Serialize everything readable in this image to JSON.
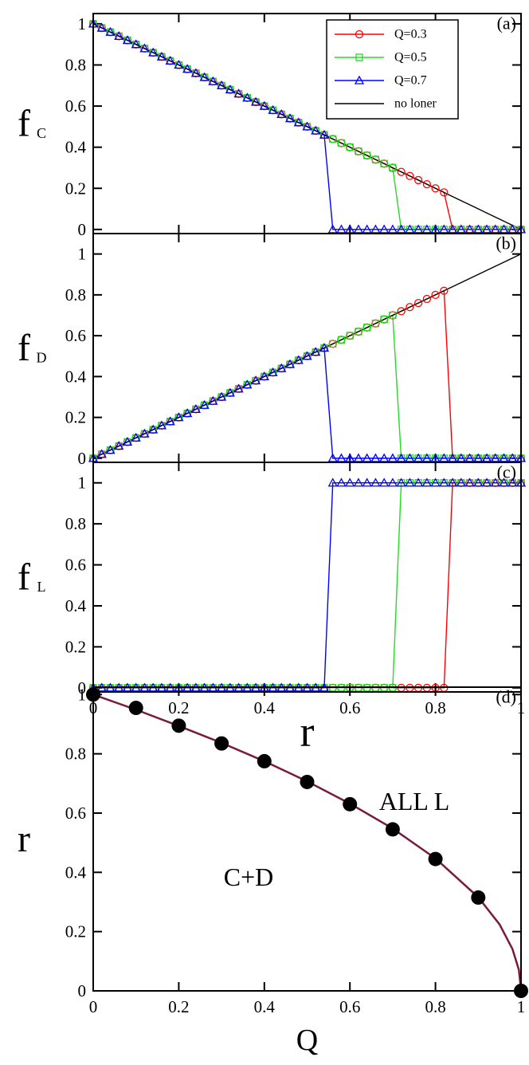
{
  "chart_data": [
    {
      "type": "line",
      "ylabel": "f",
      "ylabel_sub": "C",
      "annotations": [
        "(a)"
      ],
      "legend": "top-right",
      "xtick_labels": false,
      "xlim": [
        0,
        1
      ],
      "ylim": [
        -0.02,
        1.05
      ],
      "xticks": [
        0,
        0.2,
        0.4,
        0.6,
        0.8,
        1
      ],
      "yticks": [
        0,
        0.2,
        0.4,
        0.6,
        0.8,
        1
      ],
      "x": [
        0,
        0.02,
        0.04,
        0.06,
        0.08,
        0.1,
        0.12,
        0.14,
        0.16,
        0.18,
        0.2,
        0.22,
        0.24,
        0.26,
        0.28,
        0.3,
        0.32,
        0.34,
        0.36,
        0.38,
        0.4,
        0.42,
        0.44,
        0.46,
        0.48,
        0.5,
        0.52,
        0.54,
        0.56,
        0.58,
        0.6,
        0.62,
        0.64,
        0.66,
        0.68,
        0.7,
        0.72,
        0.74,
        0.76,
        0.78,
        0.8,
        0.82,
        0.84,
        0.86,
        0.88,
        0.9,
        0.92,
        0.94,
        0.96,
        0.98,
        1
      ],
      "series": [
        {
          "name": "Q=0.3",
          "color": "#ff0000",
          "marker": "circle",
          "values": [
            1,
            0.98,
            0.96,
            0.94,
            0.92,
            0.9,
            0.88,
            0.86,
            0.84,
            0.82,
            0.8,
            0.78,
            0.76,
            0.74,
            0.72,
            0.7,
            0.68,
            0.66,
            0.64,
            0.62,
            0.6,
            0.58,
            0.56,
            0.54,
            0.52,
            0.5,
            0.48,
            0.46,
            0.44,
            0.42,
            0.4,
            0.38,
            0.36,
            0.34,
            0.32,
            0.3,
            0.28,
            0.26,
            0.24,
            0.22,
            0.2,
            0.18,
            0,
            0,
            0,
            0,
            0,
            0,
            0,
            0,
            0
          ]
        },
        {
          "name": "Q=0.5",
          "color": "#22dd22",
          "marker": "square",
          "values": [
            1,
            0.98,
            0.96,
            0.94,
            0.92,
            0.9,
            0.88,
            0.86,
            0.84,
            0.82,
            0.8,
            0.78,
            0.76,
            0.74,
            0.72,
            0.7,
            0.68,
            0.66,
            0.64,
            0.62,
            0.6,
            0.58,
            0.56,
            0.54,
            0.52,
            0.5,
            0.48,
            0.46,
            0.44,
            0.42,
            0.4,
            0.38,
            0.36,
            0.34,
            0.32,
            0.3,
            0,
            0,
            0,
            0,
            0,
            0,
            0,
            0,
            0,
            0,
            0,
            0,
            0,
            0,
            0
          ]
        },
        {
          "name": "Q=0.7",
          "color": "#0000ff",
          "marker": "triangle",
          "values": [
            1,
            0.98,
            0.96,
            0.94,
            0.92,
            0.9,
            0.88,
            0.86,
            0.84,
            0.82,
            0.8,
            0.78,
            0.76,
            0.74,
            0.72,
            0.7,
            0.68,
            0.66,
            0.64,
            0.62,
            0.6,
            0.58,
            0.56,
            0.54,
            0.52,
            0.5,
            0.48,
            0.46,
            0,
            0,
            0,
            0,
            0,
            0,
            0,
            0,
            0,
            0,
            0,
            0,
            0,
            0,
            0,
            0,
            0,
            0,
            0,
            0,
            0,
            0,
            0
          ]
        },
        {
          "name": "no loner",
          "color": "#000000",
          "marker": "none",
          "values": [
            1,
            0.98,
            0.96,
            0.94,
            0.92,
            0.9,
            0.88,
            0.86,
            0.84,
            0.82,
            0.8,
            0.78,
            0.76,
            0.74,
            0.72,
            0.7,
            0.68,
            0.66,
            0.64,
            0.62,
            0.6,
            0.58,
            0.56,
            0.54,
            0.52,
            0.5,
            0.48,
            0.46,
            0.44,
            0.42,
            0.4,
            0.38,
            0.36,
            0.34,
            0.32,
            0.3,
            0.28,
            0.26,
            0.24,
            0.22,
            0.2,
            0.18,
            0.16,
            0.14,
            0.12,
            0.1,
            0.08,
            0.06,
            0.04,
            0.02,
            0
          ]
        }
      ]
    },
    {
      "type": "line",
      "ylabel": "f",
      "ylabel_sub": "D",
      "annotations": [
        "(b)"
      ],
      "xtick_labels": false,
      "xlim": [
        0,
        1
      ],
      "ylim": [
        -0.02,
        1.1
      ],
      "xticks": [
        0,
        0.2,
        0.4,
        0.6,
        0.8,
        1
      ],
      "yticks": [
        0,
        0.2,
        0.4,
        0.6,
        0.8,
        1
      ],
      "x": [
        0,
        0.02,
        0.04,
        0.06,
        0.08,
        0.1,
        0.12,
        0.14,
        0.16,
        0.18,
        0.2,
        0.22,
        0.24,
        0.26,
        0.28,
        0.3,
        0.32,
        0.34,
        0.36,
        0.38,
        0.4,
        0.42,
        0.44,
        0.46,
        0.48,
        0.5,
        0.52,
        0.54,
        0.56,
        0.58,
        0.6,
        0.62,
        0.64,
        0.66,
        0.68,
        0.7,
        0.72,
        0.74,
        0.76,
        0.78,
        0.8,
        0.82,
        0.84,
        0.86,
        0.88,
        0.9,
        0.92,
        0.94,
        0.96,
        0.98,
        1
      ],
      "series": [
        {
          "color": "#ff0000",
          "marker": "circle",
          "values": [
            0,
            0.02,
            0.04,
            0.06,
            0.08,
            0.1,
            0.12,
            0.14,
            0.16,
            0.18,
            0.2,
            0.22,
            0.24,
            0.26,
            0.28,
            0.3,
            0.32,
            0.34,
            0.36,
            0.38,
            0.4,
            0.42,
            0.44,
            0.46,
            0.48,
            0.5,
            0.52,
            0.54,
            0.56,
            0.58,
            0.6,
            0.62,
            0.64,
            0.66,
            0.68,
            0.7,
            0.72,
            0.74,
            0.76,
            0.78,
            0.8,
            0.82,
            0,
            0,
            0,
            0,
            0,
            0,
            0,
            0,
            0
          ]
        },
        {
          "color": "#22dd22",
          "marker": "square",
          "values": [
            0,
            0.02,
            0.04,
            0.06,
            0.08,
            0.1,
            0.12,
            0.14,
            0.16,
            0.18,
            0.2,
            0.22,
            0.24,
            0.26,
            0.28,
            0.3,
            0.32,
            0.34,
            0.36,
            0.38,
            0.4,
            0.42,
            0.44,
            0.46,
            0.48,
            0.5,
            0.52,
            0.54,
            0.56,
            0.58,
            0.6,
            0.62,
            0.64,
            0.66,
            0.68,
            0.7,
            0,
            0,
            0,
            0,
            0,
            0,
            0,
            0,
            0,
            0,
            0,
            0,
            0,
            0,
            0
          ]
        },
        {
          "color": "#0000ff",
          "marker": "triangle",
          "values": [
            0,
            0.02,
            0.04,
            0.06,
            0.08,
            0.1,
            0.12,
            0.14,
            0.16,
            0.18,
            0.2,
            0.22,
            0.24,
            0.26,
            0.28,
            0.3,
            0.32,
            0.34,
            0.36,
            0.38,
            0.4,
            0.42,
            0.44,
            0.46,
            0.48,
            0.5,
            0.52,
            0.54,
            0,
            0,
            0,
            0,
            0,
            0,
            0,
            0,
            0,
            0,
            0,
            0,
            0,
            0,
            0,
            0,
            0,
            0,
            0,
            0,
            0,
            0,
            0
          ]
        },
        {
          "color": "#000000",
          "marker": "none",
          "values": [
            0,
            0.02,
            0.04,
            0.06,
            0.08,
            0.1,
            0.12,
            0.14,
            0.16,
            0.18,
            0.2,
            0.22,
            0.24,
            0.26,
            0.28,
            0.3,
            0.32,
            0.34,
            0.36,
            0.38,
            0.4,
            0.42,
            0.44,
            0.46,
            0.48,
            0.5,
            0.52,
            0.54,
            0.56,
            0.58,
            0.6,
            0.62,
            0.64,
            0.66,
            0.68,
            0.7,
            0.72,
            0.74,
            0.76,
            0.78,
            0.8,
            0.82,
            0.84,
            0.86,
            0.88,
            0.9,
            0.92,
            0.94,
            0.96,
            0.98,
            1
          ]
        }
      ]
    },
    {
      "type": "line",
      "ylabel": "f",
      "ylabel_sub": "L",
      "xlabel": "r",
      "annotations": [
        "(c)"
      ],
      "xlim": [
        0,
        1
      ],
      "ylim": [
        -0.02,
        1.1
      ],
      "xticks": [
        0,
        0.2,
        0.4,
        0.6,
        0.8,
        1
      ],
      "yticks": [
        0,
        0.2,
        0.4,
        0.6,
        0.8,
        1
      ],
      "x": [
        0,
        0.02,
        0.04,
        0.06,
        0.08,
        0.1,
        0.12,
        0.14,
        0.16,
        0.18,
        0.2,
        0.22,
        0.24,
        0.26,
        0.28,
        0.3,
        0.32,
        0.34,
        0.36,
        0.38,
        0.4,
        0.42,
        0.44,
        0.46,
        0.48,
        0.5,
        0.52,
        0.54,
        0.56,
        0.58,
        0.6,
        0.62,
        0.64,
        0.66,
        0.68,
        0.7,
        0.72,
        0.74,
        0.76,
        0.78,
        0.8,
        0.82,
        0.84,
        0.86,
        0.88,
        0.9,
        0.92,
        0.94,
        0.96,
        0.98,
        1
      ],
      "series": [
        {
          "color": "#ff0000",
          "marker": "circle",
          "values": [
            0,
            0,
            0,
            0,
            0,
            0,
            0,
            0,
            0,
            0,
            0,
            0,
            0,
            0,
            0,
            0,
            0,
            0,
            0,
            0,
            0,
            0,
            0,
            0,
            0,
            0,
            0,
            0,
            0,
            0,
            0,
            0,
            0,
            0,
            0,
            0,
            0,
            0,
            0,
            0,
            0,
            0,
            1,
            1,
            1,
            1,
            1,
            1,
            1,
            1,
            1
          ]
        },
        {
          "color": "#22dd22",
          "marker": "square",
          "values": [
            0,
            0,
            0,
            0,
            0,
            0,
            0,
            0,
            0,
            0,
            0,
            0,
            0,
            0,
            0,
            0,
            0,
            0,
            0,
            0,
            0,
            0,
            0,
            0,
            0,
            0,
            0,
            0,
            0,
            0,
            0,
            0,
            0,
            0,
            0,
            0,
            1,
            1,
            1,
            1,
            1,
            1,
            1,
            1,
            1,
            1,
            1,
            1,
            1,
            1,
            1
          ]
        },
        {
          "color": "#0000ff",
          "marker": "triangle",
          "values": [
            0,
            0,
            0,
            0,
            0,
            0,
            0,
            0,
            0,
            0,
            0,
            0,
            0,
            0,
            0,
            0,
            0,
            0,
            0,
            0,
            0,
            0,
            0,
            0,
            0,
            0,
            0,
            0,
            1,
            1,
            1,
            1,
            1,
            1,
            1,
            1,
            1,
            1,
            1,
            1,
            1,
            1,
            1,
            1,
            1,
            1,
            1,
            1,
            1,
            1,
            1
          ]
        }
      ]
    },
    {
      "type": "line",
      "ylabel": "r",
      "xlabel": "Q",
      "annotations": [
        "(d)",
        "ALL L",
        "C+D"
      ],
      "xlim": [
        0,
        1
      ],
      "ylim": [
        0,
        1.025
      ],
      "xticks": [
        0,
        0.2,
        0.4,
        0.6,
        0.8,
        1
      ],
      "yticks": [
        0,
        0.2,
        0.4,
        0.6,
        0.8,
        1
      ],
      "series": [
        {
          "color": "#7a1a3a",
          "marker": "none",
          "x": [
            0,
            0.1,
            0.2,
            0.3,
            0.4,
            0.5,
            0.6,
            0.7,
            0.8,
            0.9,
            0.95,
            0.98,
            0.995,
            1
          ],
          "values": [
            1,
            0.949,
            0.894,
            0.837,
            0.775,
            0.707,
            0.632,
            0.548,
            0.447,
            0.316,
            0.224,
            0.141,
            0.071,
            0
          ]
        },
        {
          "color": "#000000",
          "marker": "dot",
          "line": false,
          "x": [
            0,
            0.1,
            0.2,
            0.3,
            0.4,
            0.5,
            0.6,
            0.7,
            0.8,
            0.9,
            1
          ],
          "values": [
            1,
            0.955,
            0.895,
            0.835,
            0.775,
            0.705,
            0.63,
            0.545,
            0.445,
            0.315,
            0
          ]
        }
      ]
    }
  ]
}
